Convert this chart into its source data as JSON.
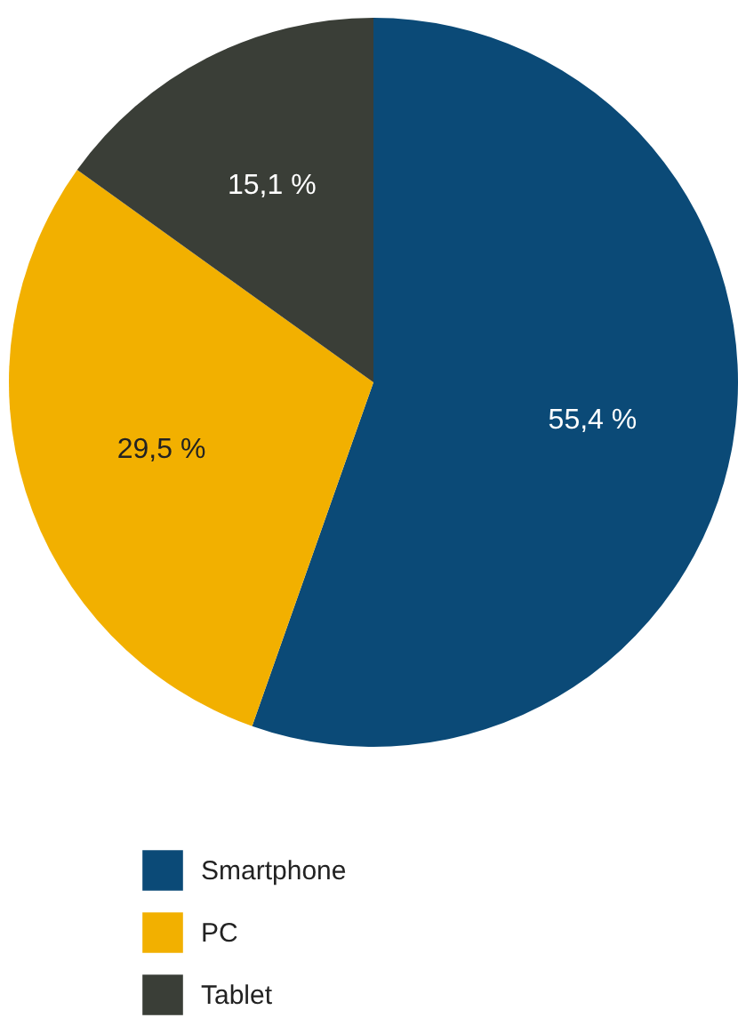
{
  "chart_data": {
    "type": "pie",
    "categories": [
      "Smartphone",
      "PC",
      "Tablet"
    ],
    "values": [
      55.4,
      29.5,
      15.1
    ],
    "colors": [
      "#0b4a77",
      "#f2b000",
      "#3a3e37"
    ],
    "value_labels": [
      "55,4 %",
      "29,5 %",
      "15,1 %"
    ],
    "legend": "bottom left"
  }
}
